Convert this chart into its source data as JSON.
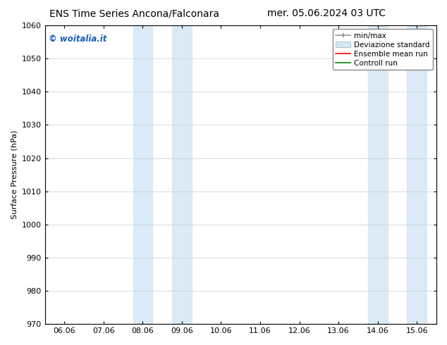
{
  "title_left": "ENS Time Series Ancona/Falconara",
  "title_right": "mer. 05.06.2024 03 UTC",
  "ylabel": "Surface Pressure (hPa)",
  "ylim": [
    970,
    1060
  ],
  "yticks": [
    970,
    980,
    990,
    1000,
    1010,
    1020,
    1030,
    1040,
    1050,
    1060
  ],
  "xtick_labels": [
    "06.06",
    "07.06",
    "08.06",
    "09.06",
    "10.06",
    "11.06",
    "12.06",
    "13.06",
    "14.06",
    "15.06"
  ],
  "xtick_positions": [
    0,
    1,
    2,
    3,
    4,
    5,
    6,
    7,
    8,
    9
  ],
  "xlim": [
    -0.5,
    9.5
  ],
  "shaded_regions": [
    {
      "xmin": 1.75,
      "xmax": 2.25,
      "color": "#daeaf7"
    },
    {
      "xmin": 2.75,
      "xmax": 3.25,
      "color": "#daeaf7"
    },
    {
      "xmin": 7.75,
      "xmax": 8.25,
      "color": "#daeaf7"
    },
    {
      "xmin": 8.75,
      "xmax": 9.25,
      "color": "#daeaf7"
    }
  ],
  "watermark_text": "© woitalia.it",
  "watermark_color": "#1a5fb4",
  "legend_entries": [
    {
      "label": "min/max",
      "color": "#999999",
      "lw": 1.2,
      "type": "errorbar"
    },
    {
      "label": "Deviazione standard",
      "color": "#d0e8f8",
      "lw": 8,
      "type": "rect"
    },
    {
      "label": "Ensemble mean run",
      "color": "red",
      "lw": 1.2,
      "type": "line"
    },
    {
      "label": "Controll run",
      "color": "green",
      "lw": 1.2,
      "type": "line"
    }
  ],
  "bg_color": "#ffffff",
  "grid_color": "#cccccc",
  "title_fontsize": 10,
  "tick_fontsize": 8,
  "ylabel_fontsize": 8,
  "legend_fontsize": 7.5
}
